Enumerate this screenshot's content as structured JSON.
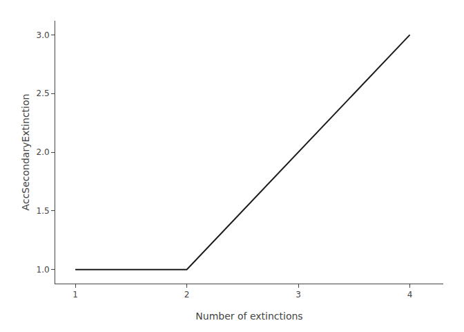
{
  "chart_data": {
    "type": "line",
    "xlabel": "Number of extinctions",
    "ylabel": "AccSecondaryExtinction",
    "x": [
      1,
      2,
      2,
      4
    ],
    "values": [
      1.0,
      1.0,
      1.0,
      3.0
    ],
    "color": "#1a1a1a",
    "xlim": [
      0.82,
      4.3
    ],
    "ylim": [
      0.88,
      3.12
    ],
    "xticks": [
      1,
      2,
      3,
      4
    ],
    "yticks": [
      {
        "value": 1.0,
        "label": "1.0"
      },
      1.5,
      {
        "value": 2.0,
        "label": "2.0"
      },
      2.5,
      {
        "value": 3.0,
        "label": "3.0"
      }
    ],
    "grid": false
  }
}
